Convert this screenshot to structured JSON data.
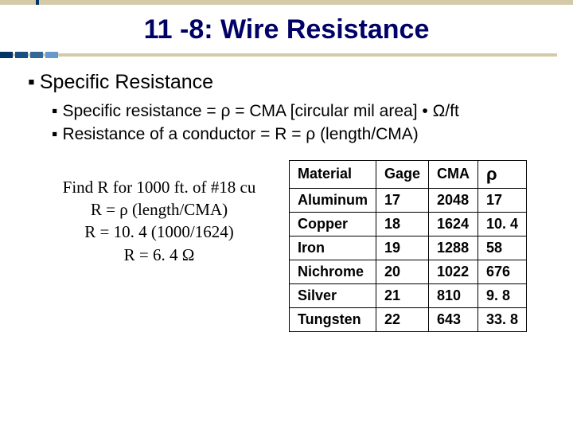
{
  "colors": {
    "title_color": "#000066",
    "bar_color": "#d4c9a8",
    "block_color": "#003366",
    "text_color": "#000000",
    "border_color": "#000000",
    "example_accent": "#003399"
  },
  "title": "11 -8: Wire Resistance",
  "heading": "Specific Resistance",
  "sub_points": [
    "Specific resistance = ρ = CMA [circular mil area] • Ω/ft",
    "Resistance of a conductor = R = ρ (length/CMA)"
  ],
  "example": {
    "line1": "Find R for 1000 ft. of #18 cu",
    "line2": "R = ρ (length/CMA)",
    "line3": "R = 10. 4 (1000/1624)",
    "line4": "R = 6. 4 Ω"
  },
  "table": {
    "headers": [
      "Material",
      "Gage",
      "CMA",
      "ρ"
    ],
    "rows": [
      [
        "Aluminum",
        "17",
        "2048",
        "17"
      ],
      [
        "Copper",
        "18",
        "1624",
        "10. 4"
      ],
      [
        "Iron",
        "19",
        "1288",
        "58"
      ],
      [
        "Nichrome",
        "20",
        "1022",
        "676"
      ],
      [
        "Silver",
        "21",
        "810",
        "9. 8"
      ],
      [
        "Tungsten",
        "22",
        "643",
        "33. 8"
      ]
    ]
  },
  "blue_blocks": [
    "#003366",
    "#1a4d80",
    "#336699",
    "#6699cc"
  ]
}
